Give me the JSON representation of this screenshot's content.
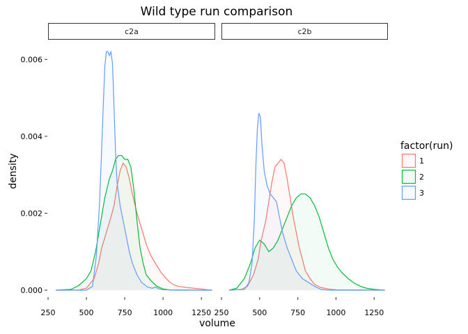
{
  "chart_data": {
    "type": "area",
    "title": "Wild type run comparison",
    "xlabel": "volume",
    "ylabel": "density",
    "xlim": [
      250,
      1330
    ],
    "ylim": [
      0,
      0.0064
    ],
    "x_ticks": [
      "250",
      "500",
      "750",
      "1000",
      "1250"
    ],
    "y_ticks": [
      "0.000",
      "0.002",
      "0.004",
      "0.006"
    ],
    "grid": false,
    "legend": {
      "title": "factor(run)",
      "placement": "right",
      "entries": [
        {
          "label": "1",
          "color": "#F8766D"
        },
        {
          "label": "2",
          "color": "#00BA38"
        },
        {
          "label": "3",
          "color": "#619CFF"
        }
      ]
    },
    "panels": [
      {
        "name": "c2a",
        "series": [
          {
            "name": "1",
            "color": "#F8766D",
            "points": [
              [
                300,
                0
              ],
              [
                450,
                5e-06
              ],
              [
                500,
                5e-05
              ],
              [
                550,
                0.0003
              ],
              [
                580,
                0.0007
              ],
              [
                600,
                0.0011
              ],
              [
                630,
                0.0015
              ],
              [
                660,
                0.0019
              ],
              [
                680,
                0.0022
              ],
              [
                700,
                0.0027
              ],
              [
                720,
                0.0031
              ],
              [
                740,
                0.0033
              ],
              [
                760,
                0.0032
              ],
              [
                780,
                0.0029
              ],
              [
                800,
                0.0025
              ],
              [
                830,
                0.002
              ],
              [
                860,
                0.0016
              ],
              [
                890,
                0.0012
              ],
              [
                920,
                0.0009
              ],
              [
                950,
                0.0007
              ],
              [
                980,
                0.0005
              ],
              [
                1010,
                0.00035
              ],
              [
                1040,
                0.00022
              ],
              [
                1070,
                0.00014
              ],
              [
                1100,
                0.0001
              ],
              [
                1150,
                7e-05
              ],
              [
                1200,
                5e-05
              ],
              [
                1250,
                3e-05
              ],
              [
                1300,
                5e-06
              ],
              [
                1320,
                0
              ]
            ]
          },
          {
            "name": "2",
            "color": "#00BA38",
            "points": [
              [
                300,
                0
              ],
              [
                400,
                2e-05
              ],
              [
                450,
                0.00012
              ],
              [
                500,
                0.0003
              ],
              [
                530,
                0.0005
              ],
              [
                560,
                0.001
              ],
              [
                590,
                0.0017
              ],
              [
                620,
                0.0024
              ],
              [
                650,
                0.0029
              ],
              [
                670,
                0.0031
              ],
              [
                690,
                0.0034
              ],
              [
                710,
                0.0035
              ],
              [
                730,
                0.0035
              ],
              [
                750,
                0.0034
              ],
              [
                770,
                0.0034
              ],
              [
                790,
                0.0032
              ],
              [
                810,
                0.0026
              ],
              [
                830,
                0.0018
              ],
              [
                850,
                0.0011
              ],
              [
                870,
                0.0007
              ],
              [
                890,
                0.0004
              ],
              [
                920,
                0.00025
              ],
              [
                960,
                0.0001
              ],
              [
                1000,
                3e-05
              ],
              [
                1050,
                5e-06
              ],
              [
                1320,
                0
              ]
            ]
          },
          {
            "name": "3",
            "color": "#619CFF",
            "points": [
              [
                300,
                0
              ],
              [
                500,
                0
              ],
              [
                540,
                0.0001
              ],
              [
                565,
                0.0009
              ],
              [
                585,
                0.0022
              ],
              [
                600,
                0.0037
              ],
              [
                610,
                0.0048
              ],
              [
                620,
                0.0058
              ],
              [
                630,
                0.0062
              ],
              [
                640,
                0.0062
              ],
              [
                650,
                0.0061
              ],
              [
                660,
                0.0062
              ],
              [
                670,
                0.0059
              ],
              [
                680,
                0.0048
              ],
              [
                690,
                0.0036
              ],
              [
                700,
                0.0028
              ],
              [
                720,
                0.0022
              ],
              [
                740,
                0.0018
              ],
              [
                760,
                0.0014
              ],
              [
                780,
                0.001
              ],
              [
                800,
                0.0007
              ],
              [
                830,
                0.0004
              ],
              [
                860,
                0.0002
              ],
              [
                900,
                8e-05
              ],
              [
                930,
                5e-05
              ],
              [
                950,
                8e-05
              ],
              [
                970,
                4e-05
              ],
              [
                1000,
                1e-05
              ],
              [
                1100,
                0
              ],
              [
                1320,
                0
              ]
            ]
          }
        ]
      },
      {
        "name": "c2b",
        "series": [
          {
            "name": "1",
            "color": "#F8766D",
            "points": [
              [
                300,
                0
              ],
              [
                380,
                2e-05
              ],
              [
                420,
                0.0001
              ],
              [
                460,
                0.0004
              ],
              [
                490,
                0.0008
              ],
              [
                510,
                0.0013
              ],
              [
                540,
                0.0018
              ],
              [
                560,
                0.0023
              ],
              [
                580,
                0.0028
              ],
              [
                600,
                0.0032
              ],
              [
                620,
                0.0033
              ],
              [
                640,
                0.0034
              ],
              [
                660,
                0.0033
              ],
              [
                680,
                0.0029
              ],
              [
                700,
                0.0024
              ],
              [
                720,
                0.0019
              ],
              [
                740,
                0.0015
              ],
              [
                760,
                0.0011
              ],
              [
                780,
                0.0008
              ],
              [
                800,
                0.0005
              ],
              [
                830,
                0.0003
              ],
              [
                860,
                0.00015
              ],
              [
                900,
                7e-05
              ],
              [
                950,
                3e-05
              ],
              [
                1000,
                1e-05
              ],
              [
                1320,
                0
              ]
            ]
          },
          {
            "name": "2",
            "color": "#00BA38",
            "points": [
              [
                300,
                0
              ],
              [
                350,
                5e-05
              ],
              [
                400,
                0.0003
              ],
              [
                440,
                0.0007
              ],
              [
                470,
                0.0011
              ],
              [
                500,
                0.0013
              ],
              [
                530,
                0.0012
              ],
              [
                560,
                0.001
              ],
              [
                590,
                0.0011
              ],
              [
                620,
                0.0013
              ],
              [
                650,
                0.0016
              ],
              [
                680,
                0.0019
              ],
              [
                710,
                0.0022
              ],
              [
                740,
                0.0024
              ],
              [
                770,
                0.0025
              ],
              [
                800,
                0.0025
              ],
              [
                830,
                0.0024
              ],
              [
                860,
                0.0022
              ],
              [
                890,
                0.0019
              ],
              [
                920,
                0.0015
              ],
              [
                950,
                0.0011
              ],
              [
                980,
                0.0008
              ],
              [
                1010,
                0.0006
              ],
              [
                1040,
                0.00045
              ],
              [
                1080,
                0.0003
              ],
              [
                1120,
                0.00018
              ],
              [
                1160,
                0.0001
              ],
              [
                1200,
                5e-05
              ],
              [
                1250,
                2e-05
              ],
              [
                1300,
                5e-06
              ],
              [
                1320,
                0
              ]
            ]
          },
          {
            "name": "3",
            "color": "#619CFF",
            "points": [
              [
                300,
                0
              ],
              [
                400,
                2e-05
              ],
              [
                430,
                0.0002
              ],
              [
                450,
                0.0007
              ],
              [
                465,
                0.0018
              ],
              [
                475,
                0.0032
              ],
              [
                485,
                0.0042
              ],
              [
                495,
                0.0046
              ],
              [
                505,
                0.0045
              ],
              [
                515,
                0.0038
              ],
              [
                530,
                0.0031
              ],
              [
                550,
                0.0027
              ],
              [
                570,
                0.0025
              ],
              [
                590,
                0.0024
              ],
              [
                610,
                0.0023
              ],
              [
                630,
                0.0019
              ],
              [
                650,
                0.0015
              ],
              [
                680,
                0.0011
              ],
              [
                710,
                0.0008
              ],
              [
                740,
                0.0005
              ],
              [
                780,
                0.0003
              ],
              [
                820,
                0.0002
              ],
              [
                860,
                0.0001
              ],
              [
                900,
                2e-05
              ],
              [
                950,
                0
              ],
              [
                1320,
                0
              ]
            ]
          }
        ]
      }
    ]
  }
}
